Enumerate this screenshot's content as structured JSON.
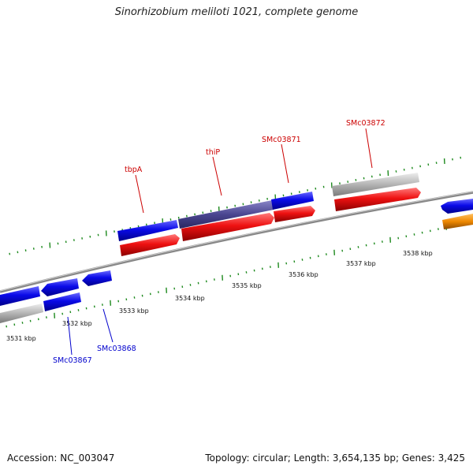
{
  "title": "Sinorhizobium meliloti 1021, complete genome",
  "footer": {
    "accession": "Accession: NC_003047",
    "summary": "Topology: circular; Length: 3,654,135 bp; Genes: 3,425"
  },
  "colors": {
    "forward_cds": "#0a0ae8",
    "reverse_cds": "#ee1111",
    "pseudo": "#b4b4b4",
    "highlight": "#4a4690",
    "orange": "#ee8800",
    "backbone": "#888888",
    "tick": "#1e8a1e",
    "label_forward": "#0000cc",
    "label_reverse": "#cc0000"
  },
  "ruler": {
    "labels": [
      "3531 kbp",
      "3532 kbp",
      "3533 kbp",
      "3534 kbp",
      "3535 kbp",
      "3536 kbp",
      "3537 kbp",
      "3538 kbp"
    ]
  },
  "gene_labels": [
    {
      "text": "tbpA",
      "strand": "reverse"
    },
    {
      "text": "thiP",
      "strand": "reverse"
    },
    {
      "text": "SMc03871",
      "strand": "reverse"
    },
    {
      "text": "SMc03872",
      "strand": "reverse"
    },
    {
      "text": "SMc03867",
      "strand": "forward"
    },
    {
      "text": "SMc03868",
      "strand": "forward"
    }
  ]
}
